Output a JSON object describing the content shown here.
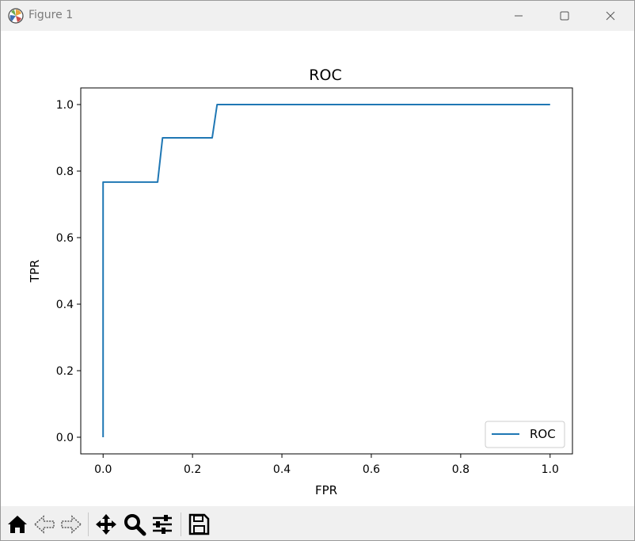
{
  "window": {
    "title": "Figure 1"
  },
  "toolbar": {
    "buttons": [
      {
        "name": "home-icon"
      },
      {
        "name": "back-arrow-icon"
      },
      {
        "name": "forward-arrow-icon"
      },
      {
        "name": "pan-move-icon"
      },
      {
        "name": "zoom-magnifier-icon"
      },
      {
        "name": "configure-subplots-icon"
      },
      {
        "name": "save-floppy-icon"
      }
    ]
  },
  "colors": {
    "line": "#1f77b4",
    "titlebar": "#f0f0f0",
    "toolbar": "#f0f0f0"
  },
  "chart_data": {
    "type": "line",
    "title": "ROC",
    "xlabel": "FPR",
    "ylabel": "TPR",
    "xlim": [
      -0.05,
      1.05
    ],
    "ylim": [
      -0.05,
      1.05
    ],
    "xticks": [
      "0.0",
      "0.2",
      "0.4",
      "0.6",
      "0.8",
      "1.0"
    ],
    "yticks": [
      "0.0",
      "0.2",
      "0.4",
      "0.6",
      "0.8",
      "1.0"
    ],
    "xtick_values": [
      0.0,
      0.2,
      0.4,
      0.6,
      0.8,
      1.0
    ],
    "ytick_values": [
      0.0,
      0.2,
      0.4,
      0.6,
      0.8,
      1.0
    ],
    "grid": false,
    "legend": {
      "placement": "lower-right",
      "entries": [
        "ROC"
      ]
    },
    "series": [
      {
        "name": "ROC",
        "color": "#1f77b4",
        "x": [
          0.0,
          0.0,
          0.122,
          0.133,
          0.244,
          0.255,
          1.0
        ],
        "y": [
          0.0,
          0.767,
          0.767,
          0.9,
          0.9,
          1.0,
          1.0
        ]
      }
    ]
  }
}
